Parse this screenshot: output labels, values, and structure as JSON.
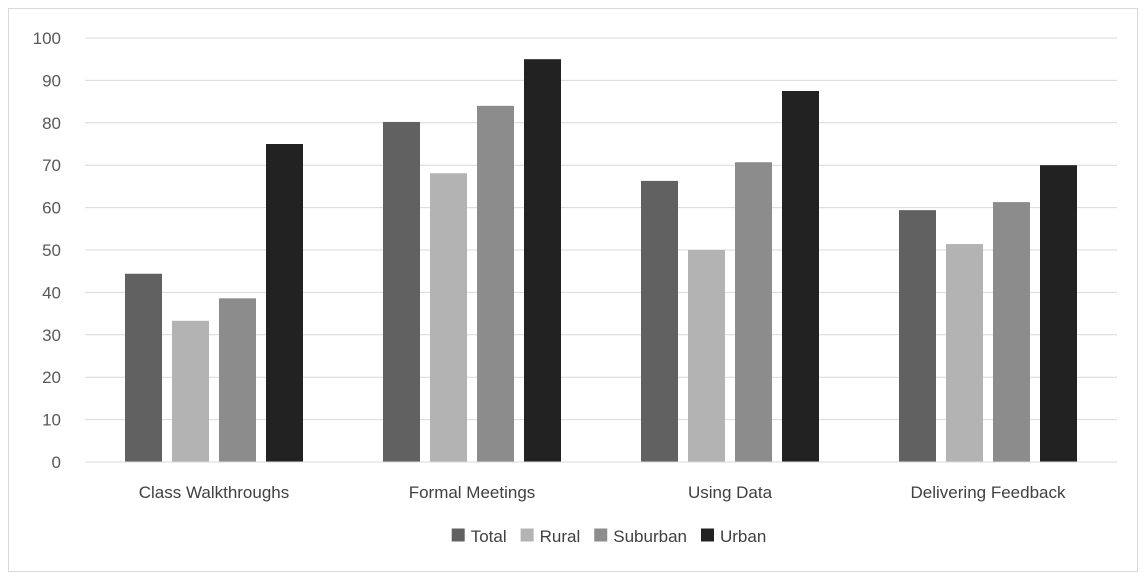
{
  "chart_data": {
    "type": "bar",
    "categories": [
      "Class Walkthroughs",
      "Formal Meetings",
      "Using Data",
      "Delivering Feedback"
    ],
    "series": [
      {
        "name": "Total",
        "color": "#616161",
        "values": [
          44.4,
          80.2,
          66.3,
          59.4
        ]
      },
      {
        "name": "Rural",
        "color": "#b3b3b3",
        "values": [
          33.3,
          68.1,
          50.0,
          51.4
        ]
      },
      {
        "name": "Suburban",
        "color": "#8c8c8c",
        "values": [
          38.6,
          84.0,
          70.7,
          61.3
        ]
      },
      {
        "name": "Urban",
        "color": "#222222",
        "values": [
          75.0,
          95.0,
          87.5,
          70.0
        ]
      }
    ],
    "ylim": [
      0,
      100
    ],
    "yticks": [
      0,
      10,
      20,
      30,
      40,
      50,
      60,
      70,
      80,
      90,
      100
    ],
    "grid": true,
    "legend_position": "bottom"
  }
}
